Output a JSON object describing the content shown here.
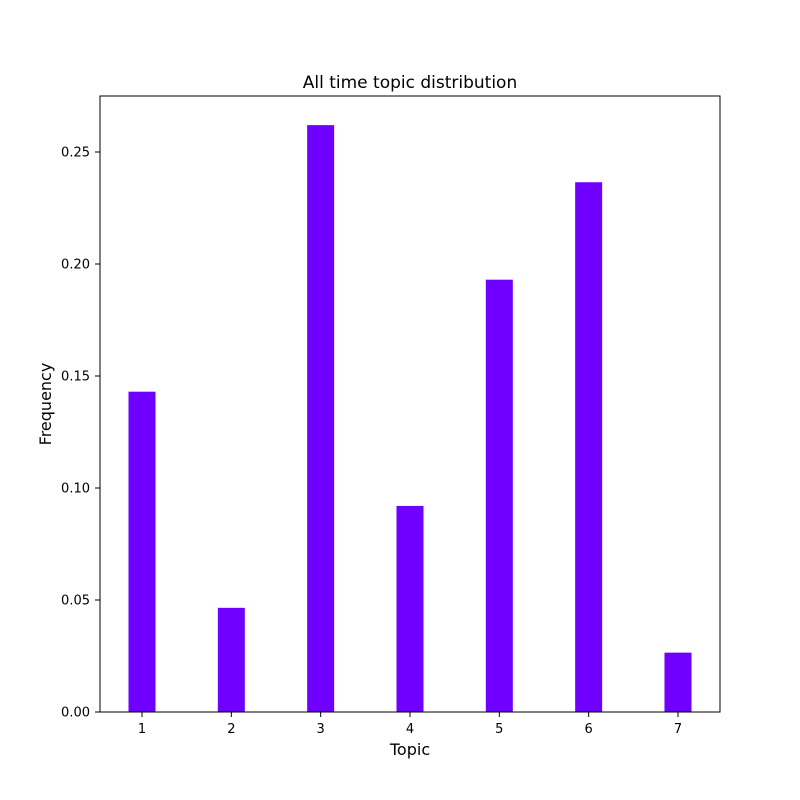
{
  "chart_data": {
    "type": "bar",
    "title": "All time topic distribution",
    "xlabel": "Topic",
    "ylabel": "Frequency",
    "categories": [
      "1",
      "2",
      "3",
      "4",
      "5",
      "6",
      "7"
    ],
    "values": [
      0.143,
      0.0465,
      0.262,
      0.092,
      0.193,
      0.2365,
      0.0265
    ],
    "ylim": [
      0,
      0.275
    ],
    "yticks": [
      0.0,
      0.05,
      0.1,
      0.15,
      0.2,
      0.25
    ],
    "ytick_labels": [
      "0.00",
      "0.05",
      "0.10",
      "0.15",
      "0.20",
      "0.25"
    ],
    "bar_color": "#6f00ff",
    "grid": false,
    "legend": "none"
  }
}
